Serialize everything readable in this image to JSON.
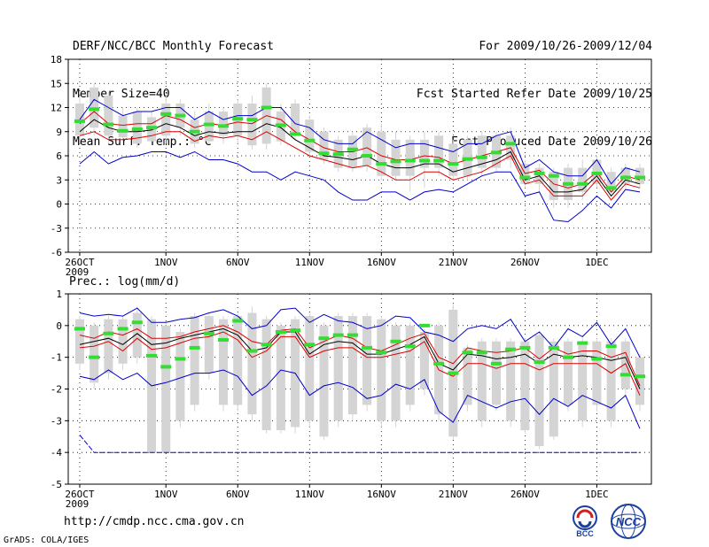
{
  "header": {
    "title": "DERF/NCC/BCC Monthly Forecast",
    "member_size": "Member Size=40",
    "variable_top": "Mean Surf. Temp.: °C",
    "period": "For 2009/10/26-2009/12/04",
    "refer_date": "Fcst Started Refer Date 2009/10/25",
    "produced_date": "Fcst Produced Date 2009/10/26"
  },
  "footer": {
    "url": "http://cmdp.ncc.cma.gov.cn",
    "credit": "GrADS: COLA/IGES",
    "logo_left": "BCC",
    "logo_right": "NCC"
  },
  "colors": {
    "box": "#d4d4d4",
    "median": "#33dd33",
    "outer": "#0000cc",
    "inner": "#dd0000",
    "mean": "#000000",
    "grid": "#000000"
  },
  "chart_data": [
    {
      "type": "box",
      "title": "",
      "ylabel": "",
      "ylim": [
        -6,
        18
      ],
      "yticks": [
        -6,
        -3,
        0,
        3,
        6,
        9,
        12,
        15,
        18
      ],
      "ytick_labels": [
        "-6",
        "-3",
        "0",
        "3",
        "6",
        "9",
        "12",
        "15",
        "18"
      ],
      "xticks": [
        {
          "day": 0,
          "label": "26OCT",
          "sub": "2009"
        },
        {
          "day": 6,
          "label": "1NOV"
        },
        {
          "day": 11,
          "label": "6NOV"
        },
        {
          "day": 16,
          "label": "11NOV"
        },
        {
          "day": 21,
          "label": "16NOV"
        },
        {
          "day": 26,
          "label": "21NOV"
        },
        {
          "day": 31,
          "label": "26NOV"
        },
        {
          "day": 36,
          "label": "1DEC"
        }
      ],
      "days": [
        0,
        1,
        2,
        3,
        4,
        5,
        6,
        7,
        8,
        9,
        10,
        11,
        12,
        13,
        14,
        15,
        16,
        17,
        18,
        19,
        20,
        21,
        22,
        23,
        24,
        25,
        26,
        27,
        28,
        29,
        30,
        31,
        32,
        33,
        34,
        35,
        36,
        37,
        38,
        39
      ],
      "box_low": [
        8.5,
        9.5,
        8.5,
        8.3,
        7.5,
        7.8,
        8.5,
        9.5,
        7.5,
        7.8,
        8.5,
        8.5,
        7.3,
        7.5,
        7.8,
        8.8,
        6.5,
        5.5,
        4.5,
        4.5,
        4.8,
        3.5,
        3.5,
        3.5,
        4.5,
        4.5,
        3.5,
        3.5,
        4.5,
        4.5,
        5.5,
        2.5,
        2.5,
        0.5,
        0.5,
        1.5,
        2.5,
        1.5,
        2.5,
        2.5
      ],
      "box_high": [
        12.5,
        14.5,
        13.5,
        11.0,
        11.5,
        10.8,
        12.5,
        12.5,
        10.5,
        11.5,
        11.5,
        12.5,
        12.5,
        14.5,
        11.5,
        12.5,
        10.5,
        9.0,
        8.0,
        8.5,
        9.5,
        9.0,
        8.0,
        8.0,
        8.0,
        8.5,
        7.5,
        8.0,
        8.5,
        8.5,
        8.5,
        5.0,
        4.5,
        4.0,
        4.5,
        4.5,
        5.5,
        4.0,
        4.5,
        4.5
      ],
      "whisker_low": [
        7.5,
        8.5,
        7.5,
        7.8,
        7.0,
        7.5,
        7.5,
        8.5,
        7.0,
        7.5,
        7.5,
        7.5,
        6.8,
        6.8,
        7.3,
        8.0,
        6.0,
        5.0,
        4.0,
        4.0,
        4.0,
        3.0,
        3.0,
        1.5,
        2.0,
        3.5,
        3.0,
        3.0,
        3.5,
        4.0,
        4.5,
        2.0,
        1.5,
        -0.5,
        -0.5,
        0.5,
        2.0,
        1.0,
        2.0,
        2.0
      ],
      "whisker_high": [
        13.5,
        15.0,
        14.0,
        12.0,
        12.0,
        11.5,
        13.5,
        13.0,
        11.5,
        12.5,
        12.0,
        13.0,
        13.5,
        15.0,
        12.5,
        13.0,
        11.0,
        9.5,
        8.5,
        9.0,
        10.0,
        10.0,
        9.0,
        8.5,
        9.0,
        9.0,
        8.0,
        8.5,
        9.0,
        9.0,
        9.5,
        5.5,
        5.0,
        4.5,
        5.0,
        5.5,
        6.0,
        4.5,
        5.0,
        5.0
      ],
      "median": [
        10.3,
        11.8,
        9.9,
        9.1,
        9.3,
        9.5,
        11.2,
        11.0,
        9.0,
        9.9,
        9.7,
        10.6,
        10.5,
        12.0,
        9.8,
        8.7,
        7.9,
        6.3,
        6.2,
        6.8,
        6.0,
        5.0,
        5.3,
        5.4,
        5.4,
        5.4,
        5.0,
        5.6,
        5.8,
        6.4,
        7.5,
        3.3,
        3.8,
        3.5,
        2.5,
        2.5,
        3.8,
        2.0,
        3.3,
        3.3
      ],
      "series": [
        {
          "name": "upper",
          "values": [
            10.5,
            13.0,
            12.0,
            11.0,
            11.5,
            11.5,
            12.0,
            12.0,
            10.5,
            11.5,
            10.5,
            11.0,
            11.0,
            12.0,
            12.0,
            10.0,
            9.5,
            8.0,
            7.5,
            7.5,
            9.0,
            8.0,
            7.0,
            7.5,
            7.5,
            7.0,
            6.5,
            7.5,
            7.5,
            8.5,
            9.0,
            4.5,
            5.5,
            4.0,
            3.5,
            3.5,
            5.5,
            2.5,
            4.5,
            4.0
          ]
        },
        {
          "name": "upper-mid",
          "values": [
            10.0,
            11.5,
            10.0,
            9.8,
            10.0,
            10.0,
            11.0,
            10.5,
            9.5,
            10.0,
            9.8,
            10.2,
            10.0,
            11.0,
            10.5,
            9.0,
            8.0,
            7.0,
            6.5,
            6.5,
            7.0,
            6.0,
            5.5,
            5.5,
            6.0,
            5.8,
            5.0,
            5.5,
            6.0,
            6.5,
            7.0,
            3.8,
            4.2,
            2.5,
            2.0,
            2.5,
            4.0,
            1.5,
            3.5,
            3.0
          ]
        },
        {
          "name": "mean",
          "values": [
            9.0,
            10.5,
            9.5,
            9.0,
            9.0,
            9.2,
            10.0,
            9.5,
            8.5,
            9.0,
            8.8,
            9.0,
            9.0,
            10.0,
            9.5,
            8.0,
            7.0,
            6.0,
            5.8,
            5.5,
            6.0,
            5.0,
            4.5,
            4.5,
            5.0,
            5.0,
            4.0,
            4.5,
            5.0,
            5.5,
            6.5,
            3.0,
            3.5,
            1.5,
            1.5,
            1.8,
            3.5,
            1.0,
            3.0,
            2.5
          ]
        },
        {
          "name": "lower-mid",
          "values": [
            8.5,
            9.0,
            8.0,
            8.0,
            8.2,
            8.5,
            9.0,
            9.0,
            7.8,
            8.5,
            8.2,
            8.5,
            8.0,
            9.0,
            8.0,
            7.0,
            6.0,
            5.5,
            5.0,
            4.5,
            4.8,
            4.0,
            3.0,
            3.0,
            4.0,
            4.0,
            3.0,
            3.5,
            4.0,
            5.0,
            6.0,
            2.5,
            3.0,
            1.0,
            1.0,
            1.0,
            3.0,
            0.5,
            2.5,
            2.0
          ]
        },
        {
          "name": "lower",
          "values": [
            5.0,
            6.5,
            5.0,
            5.8,
            6.0,
            6.5,
            6.5,
            5.8,
            6.5,
            5.5,
            5.5,
            5.0,
            4.0,
            4.0,
            3.0,
            4.0,
            3.5,
            3.0,
            1.5,
            0.5,
            0.5,
            1.5,
            1.5,
            0.5,
            1.5,
            1.8,
            1.5,
            2.5,
            3.5,
            4.0,
            4.0,
            1.0,
            1.5,
            -2.0,
            -2.2,
            -0.8,
            1.0,
            -0.5,
            1.8,
            1.5
          ]
        }
      ]
    },
    {
      "type": "box",
      "title": "Prec.: log(mm/d)",
      "ylabel": "",
      "ylim": [
        -5,
        1
      ],
      "yticks": [
        -5,
        -4,
        -3,
        -2,
        -1,
        0,
        1
      ],
      "ytick_labels": [
        "-5",
        "-4",
        "-3",
        "-2",
        "-1",
        "0",
        "1"
      ],
      "xticks": [
        {
          "day": 0,
          "label": "26OCT",
          "sub": "2009"
        },
        {
          "day": 6,
          "label": "1NOV"
        },
        {
          "day": 11,
          "label": "6NOV"
        },
        {
          "day": 16,
          "label": "11NOV"
        },
        {
          "day": 21,
          "label": "16NOV"
        },
        {
          "day": 26,
          "label": "21NOV"
        },
        {
          "day": 31,
          "label": "26NOV"
        },
        {
          "day": 36,
          "label": "1DEC"
        }
      ],
      "days": [
        0,
        1,
        2,
        3,
        4,
        5,
        6,
        7,
        8,
        9,
        10,
        11,
        12,
        13,
        14,
        15,
        16,
        17,
        18,
        19,
        20,
        21,
        22,
        23,
        24,
        25,
        26,
        27,
        28,
        29,
        30,
        31,
        32,
        33,
        34,
        35,
        36,
        37,
        38,
        39
      ],
      "box_low": [
        -1.2,
        -1.8,
        -1.5,
        -1.2,
        -1.0,
        -4.0,
        -4.0,
        -3.0,
        -2.5,
        -1.5,
        -2.5,
        -2.5,
        -2.8,
        -3.3,
        -3.3,
        -3.2,
        -3.0,
        -3.5,
        -3.0,
        -2.8,
        -2.5,
        -3.0,
        -3.0,
        -2.5,
        -2.0,
        -2.8,
        -3.5,
        -2.5,
        -3.0,
        -2.5,
        -3.0,
        -3.3,
        -3.8,
        -3.5,
        -2.5,
        -3.0,
        -2.5,
        -3.0,
        -2.0,
        -2.5
      ],
      "box_high": [
        0.2,
        0.0,
        0.2,
        0.2,
        0.4,
        0.2,
        0.0,
        -0.2,
        0.3,
        0.3,
        0.2,
        0.3,
        0.4,
        0.2,
        0.0,
        0.2,
        0.3,
        0.0,
        0.3,
        0.3,
        0.3,
        0.2,
        0.0,
        0.0,
        -0.2,
        0.0,
        0.5,
        -0.7,
        -0.5,
        -0.5,
        -0.5,
        -0.5,
        -0.3,
        -0.5,
        -0.5,
        -0.5,
        -0.5,
        -0.5,
        -0.5,
        -1.0
      ],
      "whisker_low": [
        -1.4,
        -2.0,
        -1.7,
        -1.4,
        -1.2,
        -4.0,
        -4.0,
        -3.2,
        -2.7,
        -1.7,
        -2.7,
        -2.7,
        -3.0,
        -3.4,
        -3.4,
        -3.4,
        -3.2,
        -3.6,
        -3.2,
        -3.0,
        -2.7,
        -3.2,
        -3.2,
        -2.7,
        -2.2,
        -3.0,
        -3.6,
        -2.7,
        -3.2,
        -2.7,
        -3.2,
        -3.4,
        -3.9,
        -3.6,
        -2.7,
        -3.2,
        -2.7,
        -3.2,
        -2.2,
        -2.7
      ],
      "whisker_high": [
        0.3,
        0.1,
        0.3,
        0.3,
        0.6,
        0.3,
        0.1,
        -0.1,
        0.4,
        0.4,
        0.3,
        0.4,
        0.6,
        0.3,
        0.1,
        0.3,
        0.4,
        0.1,
        0.4,
        0.4,
        0.4,
        0.3,
        0.1,
        0.1,
        -0.1,
        0.1,
        0.7,
        -0.6,
        -0.4,
        -0.4,
        -0.4,
        -0.4,
        -0.2,
        -0.4,
        -0.4,
        -0.4,
        -0.4,
        -0.4,
        -0.4,
        -0.9
      ],
      "median": [
        -0.1,
        -1.0,
        -0.25,
        -0.1,
        0.1,
        -0.95,
        -1.3,
        -1.05,
        -0.7,
        -0.25,
        -0.45,
        0.15,
        -0.8,
        -0.6,
        -0.2,
        -0.15,
        -0.6,
        -0.4,
        -0.3,
        -0.3,
        -0.7,
        -0.85,
        -0.5,
        -0.65,
        0.0,
        -1.2,
        -1.5,
        -0.85,
        -0.85,
        -1.2,
        -0.75,
        -0.7,
        -1.15,
        -0.7,
        -1.0,
        -0.55,
        -1.05,
        -0.65,
        -1.55,
        -1.6
      ],
      "series": [
        {
          "name": "upper",
          "values": [
            0.4,
            0.3,
            0.35,
            0.3,
            0.55,
            0.1,
            0.1,
            0.2,
            0.25,
            0.4,
            0.5,
            0.3,
            -0.1,
            0.0,
            0.5,
            0.55,
            0.1,
            0.35,
            0.15,
            0.1,
            -0.1,
            0.0,
            0.3,
            0.25,
            -0.2,
            -0.3,
            -0.5,
            -0.1,
            0.0,
            -0.1,
            0.2,
            -0.5,
            -0.2,
            -0.7,
            -0.1,
            -0.35,
            0.1,
            -0.6,
            -0.1,
            -1.0
          ]
        },
        {
          "name": "upper-mid",
          "values": [
            -0.3,
            -0.4,
            -0.2,
            -0.3,
            -0.1,
            -0.4,
            -0.4,
            -0.35,
            -0.2,
            -0.1,
            0.0,
            -0.2,
            -0.5,
            -0.6,
            -0.15,
            -0.1,
            -0.7,
            -0.5,
            -0.3,
            -0.4,
            -0.7,
            -0.8,
            -0.6,
            -0.4,
            -0.25,
            -1.0,
            -1.2,
            -0.7,
            -0.8,
            -0.85,
            -0.8,
            -0.7,
            -1.05,
            -0.7,
            -0.9,
            -0.8,
            -0.8,
            -1.0,
            -0.85,
            -1.9
          ]
        },
        {
          "name": "mean",
          "values": [
            -0.6,
            -0.5,
            -0.4,
            -0.6,
            -0.25,
            -0.6,
            -0.55,
            -0.4,
            -0.3,
            -0.2,
            -0.1,
            -0.3,
            -0.8,
            -0.7,
            -0.2,
            -0.2,
            -0.9,
            -0.6,
            -0.5,
            -0.55,
            -0.9,
            -0.9,
            -0.75,
            -0.6,
            -0.35,
            -1.2,
            -1.4,
            -0.9,
            -0.95,
            -1.05,
            -1.0,
            -0.9,
            -1.2,
            -0.9,
            -1.0,
            -0.95,
            -1.0,
            -1.1,
            -1.0,
            -2.0
          ]
        },
        {
          "name": "lower-mid",
          "values": [
            -0.7,
            -0.65,
            -0.5,
            -0.8,
            -0.4,
            -0.75,
            -0.7,
            -0.55,
            -0.4,
            -0.35,
            -0.2,
            -0.45,
            -1.0,
            -0.8,
            -0.35,
            -0.35,
            -1.0,
            -0.8,
            -0.7,
            -0.7,
            -1.0,
            -1.0,
            -0.9,
            -0.8,
            -0.5,
            -1.4,
            -1.6,
            -1.2,
            -1.2,
            -1.35,
            -1.2,
            -1.2,
            -1.4,
            -1.2,
            -1.2,
            -1.2,
            -1.2,
            -1.5,
            -1.2,
            -2.2
          ]
        },
        {
          "name": "lower",
          "values": [
            -1.6,
            -1.7,
            -1.4,
            -1.7,
            -1.5,
            -1.9,
            -1.8,
            -1.65,
            -1.5,
            -1.5,
            -1.4,
            -1.6,
            -2.2,
            -1.9,
            -1.4,
            -1.5,
            -2.2,
            -1.9,
            -1.8,
            -1.95,
            -2.3,
            -2.2,
            -1.85,
            -2.0,
            -1.7,
            -2.7,
            -3.05,
            -2.2,
            -2.4,
            -2.6,
            -2.4,
            -2.3,
            -2.8,
            -2.3,
            -2.55,
            -2.2,
            -2.4,
            -2.6,
            -2.2,
            -3.25
          ]
        },
        {
          "name": "floor",
          "values": [
            -3.45,
            -4.0,
            -4.0,
            -4.0,
            -4.0,
            -4.0,
            -4.0,
            -4.0,
            -4.0,
            -4.0,
            -4.0,
            -4.0,
            -4.0,
            -4.0,
            -4.0,
            -4.0,
            -4.0,
            -4.0,
            -4.0,
            -4.0,
            -4.0,
            -4.0,
            -4.0,
            -4.0,
            -4.0,
            -4.0,
            -4.0,
            -4.0,
            -4.0,
            -4.0,
            -4.0,
            -4.0,
            -4.0,
            -4.0,
            -4.0,
            -4.0,
            -4.0,
            -4.0,
            -4.0,
            -4.0
          ]
        }
      ]
    }
  ]
}
